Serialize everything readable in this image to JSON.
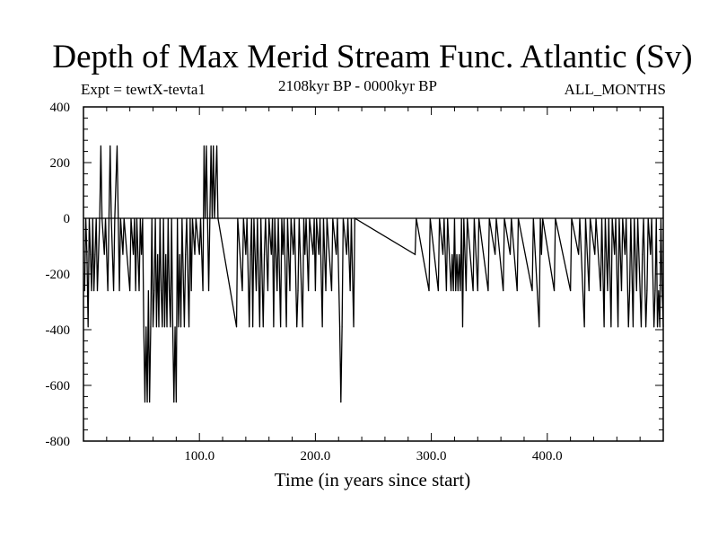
{
  "chart_data": {
    "type": "line",
    "title": "Depth of Max Merid Stream Func. Atlantic (Sv)",
    "experiment_label": "Expt = tewtX-tevta1",
    "period_label": "2108kyr BP - 0000kyr BP",
    "months_label": "ALL_MONTHS",
    "xlabel": "Time (in years since start)",
    "ylabel": "",
    "xlim": [
      0,
      500
    ],
    "ylim": [
      -800,
      400
    ],
    "x_ticks": [
      100,
      200,
      300,
      400
    ],
    "x_tick_labels": [
      "100.0",
      "200.0",
      "300.0",
      "400.0"
    ],
    "y_ticks": [
      400,
      200,
      0,
      -200,
      -400,
      -600,
      -800
    ],
    "y_tick_labels": [
      "400",
      "200",
      "0",
      "-200",
      "-400",
      "-600",
      "-800"
    ],
    "grid": false,
    "baseline": 0,
    "series": [
      {
        "values": [
          [
            1,
            -260
          ],
          [
            2,
            0
          ],
          [
            3,
            -130
          ],
          [
            4,
            -390
          ],
          [
            5,
            0
          ],
          [
            6,
            -130
          ],
          [
            7,
            -260
          ],
          [
            8,
            0
          ],
          [
            9,
            -260
          ],
          [
            10,
            -130
          ],
          [
            11,
            0
          ],
          [
            12,
            -260
          ],
          [
            14,
            0
          ],
          [
            15,
            260
          ],
          [
            16,
            0
          ],
          [
            18,
            -130
          ],
          [
            19,
            0
          ],
          [
            21,
            -260
          ],
          [
            22,
            0
          ],
          [
            23,
            260
          ],
          [
            24,
            0
          ],
          [
            26,
            -260
          ],
          [
            27,
            0
          ],
          [
            29,
            260
          ],
          [
            30,
            0
          ],
          [
            31,
            -260
          ],
          [
            32,
            0
          ],
          [
            34,
            -130
          ],
          [
            35,
            0
          ],
          [
            40,
            -260
          ],
          [
            41,
            0
          ],
          [
            43,
            -130
          ],
          [
            44,
            0
          ],
          [
            45,
            -260
          ],
          [
            46,
            0
          ],
          [
            48,
            -260
          ],
          [
            49,
            0
          ],
          [
            50,
            -130
          ],
          [
            51,
            0
          ],
          [
            52,
            -390
          ],
          [
            53,
            -660
          ],
          [
            54,
            -390
          ],
          [
            55,
            -660
          ],
          [
            56,
            -260
          ],
          [
            57,
            -660
          ],
          [
            58,
            -390
          ],
          [
            59,
            0
          ],
          [
            60,
            -390
          ],
          [
            61,
            -260
          ],
          [
            62,
            0
          ],
          [
            63,
            -390
          ],
          [
            64,
            -130
          ],
          [
            65,
            -390
          ],
          [
            66,
            0
          ],
          [
            67,
            -260
          ],
          [
            68,
            -390
          ],
          [
            69,
            0
          ],
          [
            70,
            -390
          ],
          [
            71,
            -130
          ],
          [
            72,
            -390
          ],
          [
            73,
            0
          ],
          [
            74,
            -260
          ],
          [
            75,
            -390
          ],
          [
            76,
            0
          ],
          [
            77,
            -390
          ],
          [
            78,
            -660
          ],
          [
            79,
            -390
          ],
          [
            80,
            -660
          ],
          [
            81,
            0
          ],
          [
            82,
            -390
          ],
          [
            83,
            -130
          ],
          [
            84,
            -390
          ],
          [
            85,
            0
          ],
          [
            87,
            -390
          ],
          [
            88,
            -130
          ],
          [
            89,
            0
          ],
          [
            91,
            -390
          ],
          [
            92,
            0
          ],
          [
            93,
            -260
          ],
          [
            94,
            0
          ],
          [
            96,
            -130
          ],
          [
            97,
            0
          ],
          [
            100,
            -130
          ],
          [
            101,
            0
          ],
          [
            103,
            -260
          ],
          [
            104,
            260
          ],
          [
            105,
            0
          ],
          [
            106,
            260
          ],
          [
            107,
            0
          ],
          [
            108,
            -260
          ],
          [
            109,
            0
          ],
          [
            110,
            260
          ],
          [
            111,
            0
          ],
          [
            112,
            260
          ],
          [
            113,
            0
          ],
          [
            115,
            260
          ],
          [
            116,
            0
          ],
          [
            132,
            -390
          ],
          [
            133,
            0
          ],
          [
            137,
            -260
          ],
          [
            138,
            0
          ],
          [
            140,
            -130
          ],
          [
            141,
            0
          ],
          [
            143,
            -390
          ],
          [
            144,
            -130
          ],
          [
            145,
            0
          ],
          [
            146,
            -390
          ],
          [
            147,
            0
          ],
          [
            149,
            -260
          ],
          [
            150,
            0
          ],
          [
            152,
            -390
          ],
          [
            153,
            0
          ],
          [
            155,
            -390
          ],
          [
            156,
            -130
          ],
          [
            157,
            0
          ],
          [
            159,
            -260
          ],
          [
            160,
            0
          ],
          [
            162,
            -130
          ],
          [
            163,
            0
          ],
          [
            164,
            -390
          ],
          [
            165,
            0
          ],
          [
            167,
            -260
          ],
          [
            168,
            0
          ],
          [
            170,
            -390
          ],
          [
            171,
            0
          ],
          [
            172,
            -130
          ],
          [
            173,
            0
          ],
          [
            175,
            -390
          ],
          [
            176,
            0
          ],
          [
            178,
            -260
          ],
          [
            179,
            0
          ],
          [
            181,
            -130
          ],
          [
            182,
            0
          ],
          [
            184,
            -390
          ],
          [
            185,
            -260
          ],
          [
            186,
            0
          ],
          [
            189,
            -390
          ],
          [
            190,
            0
          ],
          [
            191,
            -130
          ],
          [
            192,
            0
          ],
          [
            194,
            -260
          ],
          [
            195,
            0
          ],
          [
            198,
            -130
          ],
          [
            199,
            0
          ],
          [
            200,
            -260
          ],
          [
            201,
            0
          ],
          [
            203,
            -130
          ],
          [
            204,
            0
          ],
          [
            206,
            -390
          ],
          [
            207,
            0
          ],
          [
            209,
            -260
          ],
          [
            210,
            0
          ],
          [
            214,
            -260
          ],
          [
            215,
            0
          ],
          [
            218,
            -130
          ],
          [
            219,
            0
          ],
          [
            221,
            -390
          ],
          [
            222,
            -660
          ],
          [
            223,
            -390
          ],
          [
            224,
            0
          ],
          [
            227,
            -130
          ],
          [
            228,
            0
          ],
          [
            230,
            -260
          ],
          [
            231,
            0
          ],
          [
            233,
            -390
          ],
          [
            234,
            0
          ],
          [
            286,
            -130
          ],
          [
            287,
            0
          ],
          [
            298,
            -260
          ],
          [
            299,
            0
          ],
          [
            306,
            -260
          ],
          [
            307,
            0
          ],
          [
            310,
            -130
          ],
          [
            311,
            0
          ],
          [
            313,
            -260
          ],
          [
            314,
            0
          ],
          [
            317,
            -260
          ],
          [
            318,
            -130
          ],
          [
            319,
            -260
          ],
          [
            320,
            0
          ],
          [
            321,
            -260
          ],
          [
            322,
            -130
          ],
          [
            323,
            -260
          ],
          [
            324,
            -130
          ],
          [
            325,
            -260
          ],
          [
            326,
            0
          ],
          [
            327,
            -390
          ],
          [
            328,
            0
          ],
          [
            330,
            -260
          ],
          [
            331,
            0
          ],
          [
            336,
            -260
          ],
          [
            337,
            0
          ],
          [
            340,
            -260
          ],
          [
            341,
            0
          ],
          [
            349,
            -260
          ],
          [
            350,
            0
          ],
          [
            355,
            -130
          ],
          [
            356,
            0
          ],
          [
            362,
            -260
          ],
          [
            363,
            0
          ],
          [
            368,
            -130
          ],
          [
            369,
            0
          ],
          [
            374,
            -260
          ],
          [
            375,
            0
          ],
          [
            387,
            -260
          ],
          [
            388,
            0
          ],
          [
            393,
            -390
          ],
          [
            394,
            0
          ],
          [
            395,
            -130
          ],
          [
            396,
            0
          ],
          [
            406,
            -260
          ],
          [
            407,
            0
          ],
          [
            420,
            -260
          ],
          [
            421,
            0
          ],
          [
            427,
            -130
          ],
          [
            428,
            0
          ],
          [
            432,
            -390
          ],
          [
            433,
            0
          ],
          [
            436,
            -260
          ],
          [
            437,
            0
          ],
          [
            441,
            -130
          ],
          [
            442,
            0
          ],
          [
            446,
            -260
          ],
          [
            447,
            0
          ],
          [
            449,
            -390
          ],
          [
            450,
            0
          ],
          [
            452,
            -260
          ],
          [
            453,
            0
          ],
          [
            455,
            -390
          ],
          [
            456,
            0
          ],
          [
            458,
            -130
          ],
          [
            459,
            0
          ],
          [
            461,
            -390
          ],
          [
            462,
            0
          ],
          [
            464,
            -260
          ],
          [
            465,
            0
          ],
          [
            467,
            -130
          ],
          [
            468,
            0
          ],
          [
            470,
            -390
          ],
          [
            471,
            -260
          ],
          [
            472,
            0
          ],
          [
            474,
            -390
          ],
          [
            475,
            0
          ],
          [
            477,
            -260
          ],
          [
            478,
            0
          ],
          [
            481,
            -390
          ],
          [
            482,
            -130
          ],
          [
            483,
            0
          ],
          [
            485,
            -390
          ],
          [
            486,
            -260
          ],
          [
            487,
            0
          ],
          [
            489,
            -130
          ],
          [
            490,
            0
          ],
          [
            492,
            -390
          ],
          [
            493,
            -260
          ],
          [
            494,
            0
          ],
          [
            495,
            -390
          ],
          [
            496,
            -260
          ],
          [
            497,
            -390
          ],
          [
            498,
            0
          ],
          [
            499,
            -260
          ],
          [
            500,
            -390
          ]
        ]
      }
    ]
  }
}
